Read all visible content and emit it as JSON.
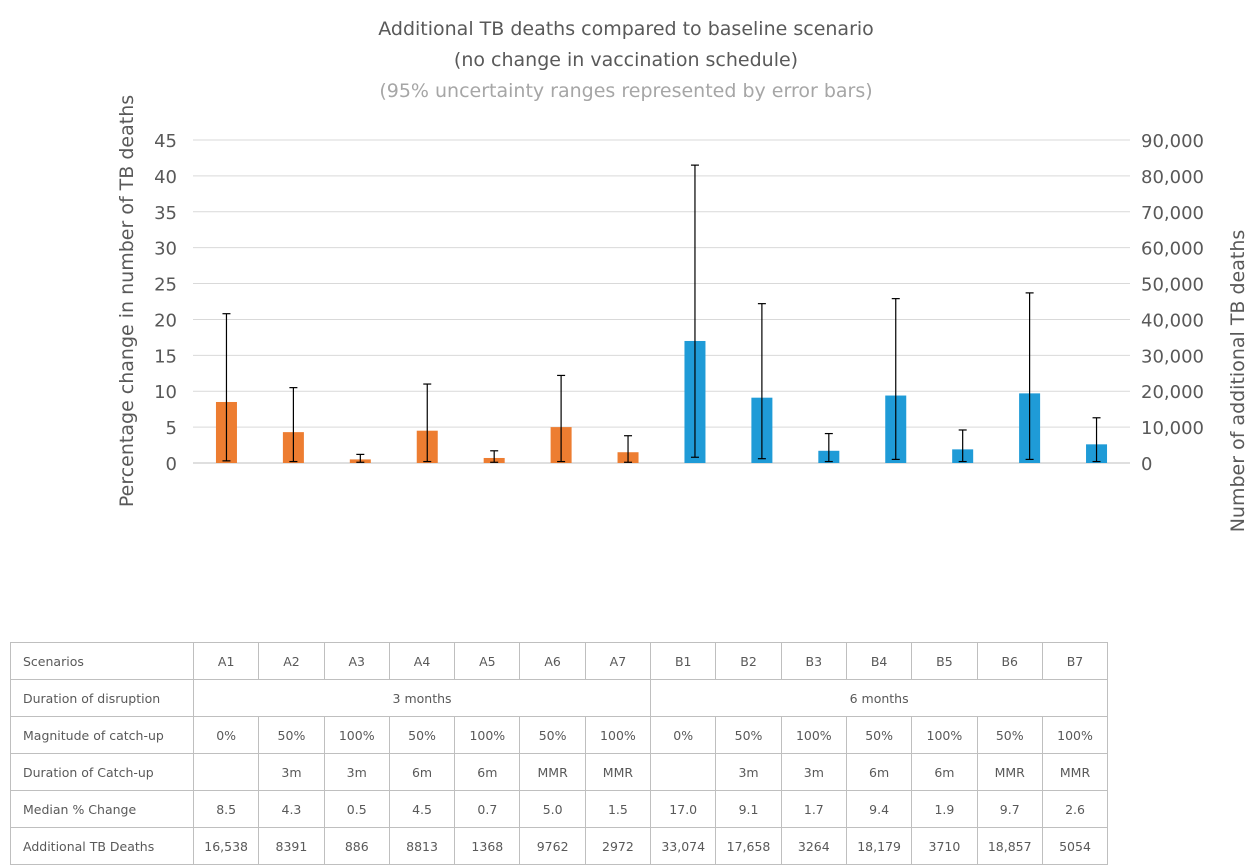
{
  "title": {
    "line1": "Additional TB deaths compared to baseline scenario",
    "line2": "(no change in vaccination schedule)",
    "line3": "(95% uncertainty ranges represented by error bars)"
  },
  "chart_data": {
    "type": "bar",
    "title": "Additional TB deaths compared to baseline scenario (no change in vaccination schedule)",
    "subtitle": "(95% uncertainty ranges represented by error bars)",
    "ylabel": "Percentage change in number of TB deaths",
    "y2label": "Number  of additional TB deaths",
    "ylim": [
      0,
      45
    ],
    "y2lim": [
      0,
      90000
    ],
    "yticks": [
      "0",
      "5",
      "10",
      "15",
      "20",
      "25",
      "30",
      "35",
      "40",
      "45"
    ],
    "y2ticks": [
      "0",
      "10,000",
      "20,000",
      "30,000",
      "40,000",
      "50,000",
      "60,000",
      "70,000",
      "80,000",
      "90,000"
    ],
    "grid": true,
    "categories": [
      "A1",
      "A2",
      "A3",
      "A4",
      "A5",
      "A6",
      "A7",
      "B1",
      "B2",
      "B3",
      "B4",
      "B5",
      "B6",
      "B7"
    ],
    "values": [
      8.5,
      4.3,
      0.5,
      4.5,
      0.7,
      5.0,
      1.5,
      17.0,
      9.1,
      1.7,
      9.4,
      1.9,
      9.7,
      2.6
    ],
    "error_low": [
      0.3,
      0.2,
      0.1,
      0.2,
      0.1,
      0.2,
      0.1,
      0.8,
      0.6,
      0.2,
      0.5,
      0.2,
      0.5,
      0.2
    ],
    "error_high": [
      20.8,
      10.5,
      1.2,
      11.0,
      1.7,
      12.2,
      3.8,
      41.5,
      22.2,
      4.1,
      22.9,
      4.6,
      23.7,
      6.3
    ],
    "colors": [
      "#ED7D31",
      "#ED7D31",
      "#ED7D31",
      "#ED7D31",
      "#ED7D31",
      "#ED7D31",
      "#ED7D31",
      "#1F9BD7",
      "#1F9BD7",
      "#1F9BD7",
      "#1F9BD7",
      "#1F9BD7",
      "#1F9BD7",
      "#1F9BD7"
    ],
    "table": {
      "scenarios_label": "Scenarios",
      "disruption_label": "Duration of disruption",
      "disruption_groups": [
        "3 months",
        "6 months"
      ],
      "catchup_mag_label": "Magnitude of catch-up",
      "catchup_mag": [
        "0%",
        "50%",
        "100%",
        "50%",
        "100%",
        "50%",
        "100%",
        "0%",
        "50%",
        "100%",
        "50%",
        "100%",
        "50%",
        "100%"
      ],
      "catchup_dur_label": "Duration of Catch-up",
      "catchup_dur": [
        "",
        "3m",
        "3m",
        "6m",
        "6m",
        "MMR",
        "MMR",
        "",
        "3m",
        "3m",
        "6m",
        "6m",
        "MMR",
        "MMR"
      ],
      "median_label": "Median % Change",
      "median": [
        "8.5",
        "4.3",
        "0.5",
        "4.5",
        "0.7",
        "5.0",
        "1.5",
        "17.0",
        "9.1",
        "1.7",
        "9.4",
        "1.9",
        "9.7",
        "2.6"
      ],
      "deaths_label": "Additional TB Deaths",
      "deaths": [
        "16,538",
        "8391",
        "886",
        "8813",
        "1368",
        "9762",
        "2972",
        "33,074",
        "17,658",
        "3264",
        "18,179",
        "3710",
        "18,857",
        "5054"
      ]
    }
  }
}
